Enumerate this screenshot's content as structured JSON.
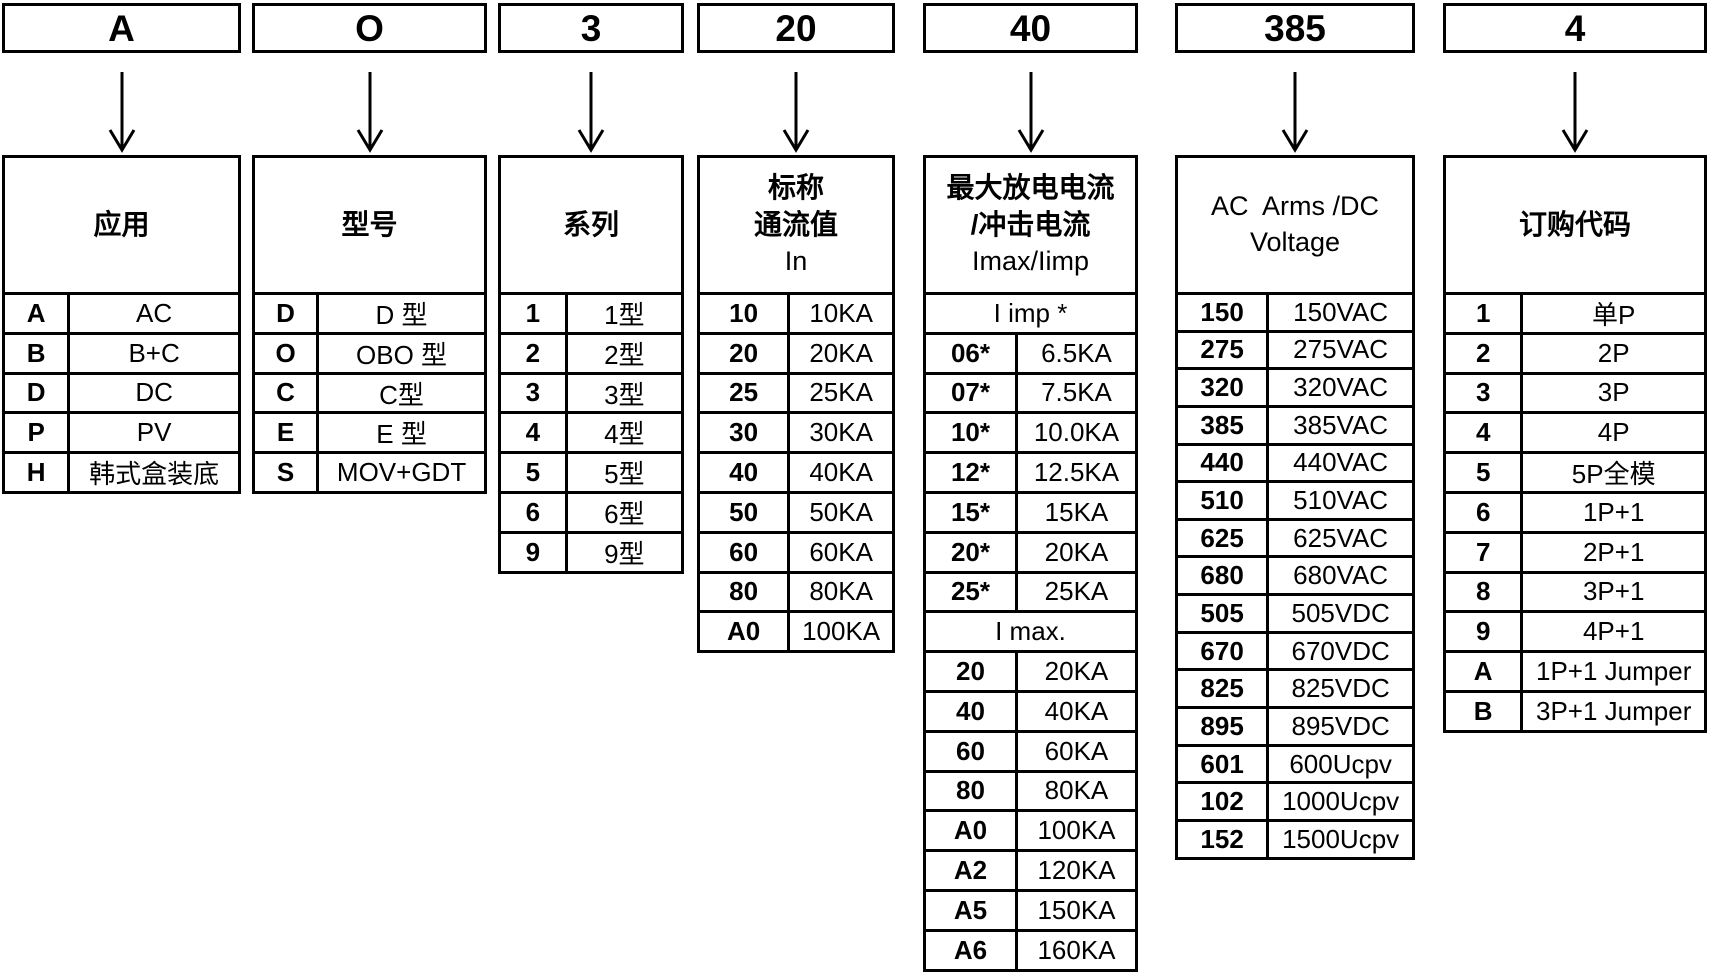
{
  "diagram": {
    "title": "ordering-code-breakdown",
    "example_code": [
      "A",
      "O",
      "3",
      "20",
      "40",
      "385",
      "4"
    ],
    "columns": [
      {
        "code": "A",
        "header_lines": [
          "应用"
        ],
        "sections": [
          {
            "label": "",
            "rows": [
              {
                "code": "A",
                "value": "AC"
              },
              {
                "code": "B",
                "value": "B+C"
              },
              {
                "code": "D",
                "value": "DC"
              },
              {
                "code": "P",
                "value": "PV"
              },
              {
                "code": "H",
                "value": "韩式盒装底"
              }
            ]
          }
        ]
      },
      {
        "code": "O",
        "header_lines": [
          "型号"
        ],
        "sections": [
          {
            "label": "",
            "rows": [
              {
                "code": "D",
                "value": "D 型"
              },
              {
                "code": "O",
                "value": "OBO 型"
              },
              {
                "code": "C",
                "value": "C型"
              },
              {
                "code": "E",
                "value": "E 型"
              },
              {
                "code": "S",
                "value": "MOV+GDT"
              }
            ]
          }
        ]
      },
      {
        "code": "3",
        "header_lines": [
          "系列"
        ],
        "sections": [
          {
            "label": "",
            "rows": [
              {
                "code": "1",
                "value": "1型"
              },
              {
                "code": "2",
                "value": "2型"
              },
              {
                "code": "3",
                "value": "3型"
              },
              {
                "code": "4",
                "value": "4型"
              },
              {
                "code": "5",
                "value": "5型"
              },
              {
                "code": "6",
                "value": "6型"
              },
              {
                "code": "9",
                "value": "9型"
              }
            ]
          }
        ]
      },
      {
        "code": "20",
        "header_lines": [
          "标称",
          "通流值",
          "In"
        ],
        "sections": [
          {
            "label": "",
            "rows": [
              {
                "code": "10",
                "value": "10KA"
              },
              {
                "code": "20",
                "value": "20KA"
              },
              {
                "code": "25",
                "value": "25KA"
              },
              {
                "code": "30",
                "value": "30KA"
              },
              {
                "code": "40",
                "value": "40KA"
              },
              {
                "code": "50",
                "value": "50KA"
              },
              {
                "code": "60",
                "value": "60KA"
              },
              {
                "code": "80",
                "value": "80KA"
              },
              {
                "code": "A0",
                "value": "100KA"
              }
            ]
          }
        ]
      },
      {
        "code": "40",
        "header_lines": [
          "最大放电电流",
          "/冲击电流",
          "Imax/Iimp"
        ],
        "sections": [
          {
            "label": "I imp *",
            "rows": [
              {
                "code": "06*",
                "value": "6.5KA"
              },
              {
                "code": "07*",
                "value": "7.5KA"
              },
              {
                "code": "10*",
                "value": "10.0KA"
              },
              {
                "code": "12*",
                "value": "12.5KA"
              },
              {
                "code": "15*",
                "value": "15KA"
              },
              {
                "code": "20*",
                "value": "20KA"
              },
              {
                "code": "25*",
                "value": "25KA"
              }
            ]
          },
          {
            "label": "I max.",
            "rows": [
              {
                "code": "20",
                "value": "20KA"
              },
              {
                "code": "40",
                "value": "40KA"
              },
              {
                "code": "60",
                "value": "60KA"
              },
              {
                "code": "80",
                "value": "80KA"
              },
              {
                "code": "A0",
                "value": "100KA"
              },
              {
                "code": "A2",
                "value": "120KA"
              },
              {
                "code": "A5",
                "value": "150KA"
              },
              {
                "code": "A6",
                "value": "160KA"
              }
            ]
          }
        ]
      },
      {
        "code": "385",
        "header_lines": [
          "AC  Arms /DC",
          "Voltage"
        ],
        "sections": [
          {
            "label": "",
            "rows": [
              {
                "code": "150",
                "value": "150VAC"
              },
              {
                "code": "275",
                "value": "275VAC"
              },
              {
                "code": "320",
                "value": "320VAC"
              },
              {
                "code": "385",
                "value": "385VAC"
              },
              {
                "code": "440",
                "value": "440VAC"
              },
              {
                "code": "510",
                "value": "510VAC"
              },
              {
                "code": "625",
                "value": "625VAC"
              },
              {
                "code": "680",
                "value": "680VAC"
              },
              {
                "code": "505",
                "value": "505VDC"
              },
              {
                "code": "670",
                "value": "670VDC"
              },
              {
                "code": "825",
                "value": "825VDC"
              },
              {
                "code": "895",
                "value": "895VDC"
              },
              {
                "code": "601",
                "value": "600Ucpv"
              },
              {
                "code": "102",
                "value": "1000Ucpv"
              },
              {
                "code": "152",
                "value": "1500Ucpv"
              }
            ]
          }
        ]
      },
      {
        "code": "4",
        "header_lines": [
          "订购代码"
        ],
        "sections": [
          {
            "label": "",
            "rows": [
              {
                "code": "1",
                "value": "单P"
              },
              {
                "code": "2",
                "value": "2P"
              },
              {
                "code": "3",
                "value": "3P"
              },
              {
                "code": "4",
                "value": "4P"
              },
              {
                "code": "5",
                "value": "5P全模"
              },
              {
                "code": "6",
                "value": "1P+1"
              },
              {
                "code": "7",
                "value": "2P+1"
              },
              {
                "code": "8",
                "value": "3P+1"
              },
              {
                "code": "9",
                "value": "4P+1"
              },
              {
                "code": "A",
                "value": "1P+1 Jumper"
              },
              {
                "code": "B",
                "value": "3P+1 Jumper"
              }
            ]
          }
        ]
      }
    ],
    "colors": {
      "line": "#000000",
      "background": "#ffffff"
    }
  }
}
